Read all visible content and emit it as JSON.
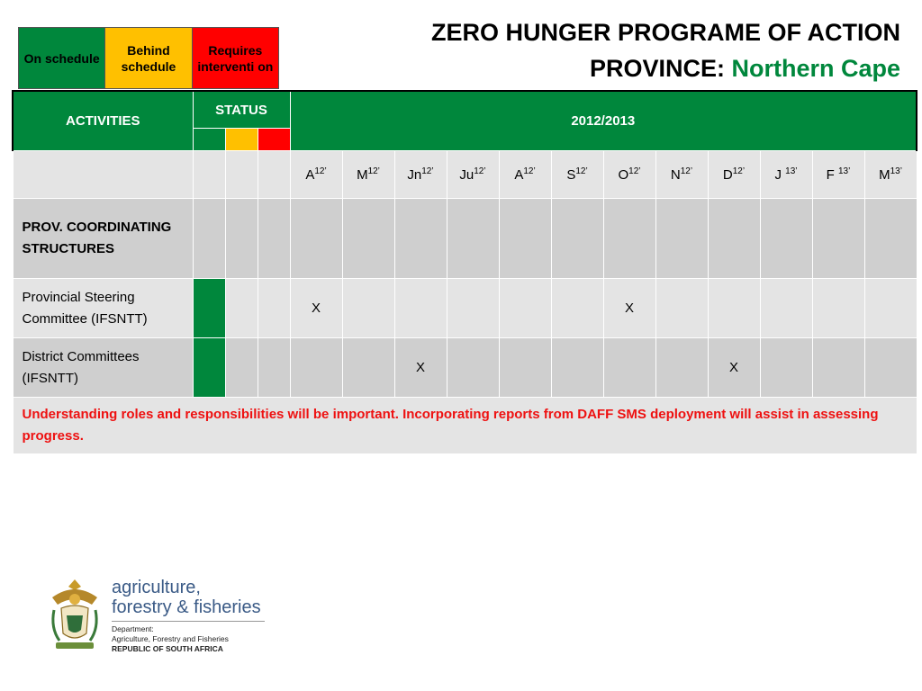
{
  "legend": {
    "on_schedule": "On schedule",
    "behind_schedule": "Behind schedule",
    "requires_intervention": "Requires interventi on"
  },
  "title": {
    "line1": "ZERO HUNGER PROGRAME OF ACTION",
    "province_label": "PROVINCE: ",
    "province_value": "Northern Cape"
  },
  "table": {
    "activities_header": "ACTIVITIES",
    "status_header": "STATUS",
    "year_header": "2012/2013",
    "months": [
      {
        "m": "A",
        "y": "12’"
      },
      {
        "m": "M",
        "y": "12’"
      },
      {
        "m": "Jn",
        "y": "12’"
      },
      {
        "m": "Ju",
        "y": "12’"
      },
      {
        "m": "A",
        "y": "12’"
      },
      {
        "m": "S",
        "y": "12’"
      },
      {
        "m": "O",
        "y": "12’"
      },
      {
        "m": "N",
        "y": "12’"
      },
      {
        "m": "D",
        "y": "12’"
      },
      {
        "m": "J ",
        "y": "13’"
      },
      {
        "m": "F ",
        "y": "13’"
      },
      {
        "m": "M",
        "y": "13’"
      }
    ],
    "rows": [
      {
        "activity": "PROV. COORDINATING STRUCTURES",
        "status": "",
        "marks": [
          "",
          "",
          "",
          "",
          "",
          "",
          "",
          "",
          "",
          "",
          "",
          ""
        ]
      },
      {
        "activity": "Provincial Steering Committee (IFSNTT)",
        "status": "on_schedule",
        "marks": [
          "X",
          "",
          "",
          "",
          "",
          "",
          "X",
          "",
          "",
          "",
          "",
          ""
        ]
      },
      {
        "activity": "District Committees (IFSNTT)",
        "status": "on_schedule",
        "marks": [
          "",
          "",
          "X",
          "",
          "",
          "",
          "",
          "",
          "X",
          "",
          "",
          ""
        ]
      }
    ],
    "note": "Understanding roles and responsibilities will be important. Incorporating reports from DAFF SMS deployment will assist in assessing progress."
  },
  "logo": {
    "line1": "agriculture,",
    "line2": "forestry & fisheries",
    "dept1": "Department:",
    "dept2": "Agriculture, Forestry and Fisheries",
    "dept3": "REPUBLIC OF SOUTH AFRICA"
  },
  "colors": {
    "green": "#00873c",
    "amber": "#ffc000",
    "red": "#ff0000",
    "note_red": "#ee1111"
  }
}
